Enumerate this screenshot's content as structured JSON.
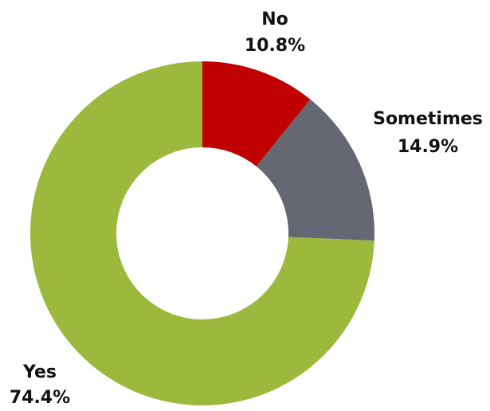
{
  "chart_data": {
    "type": "donut",
    "categories": [
      "No",
      "Sometimes",
      "Yes"
    ],
    "values": [
      10.8,
      14.9,
      74.4
    ],
    "value_labels": [
      "10.8%",
      "14.9%",
      "74.4%"
    ],
    "colors": [
      "#c00000",
      "#656872",
      "#9cb93e"
    ]
  }
}
